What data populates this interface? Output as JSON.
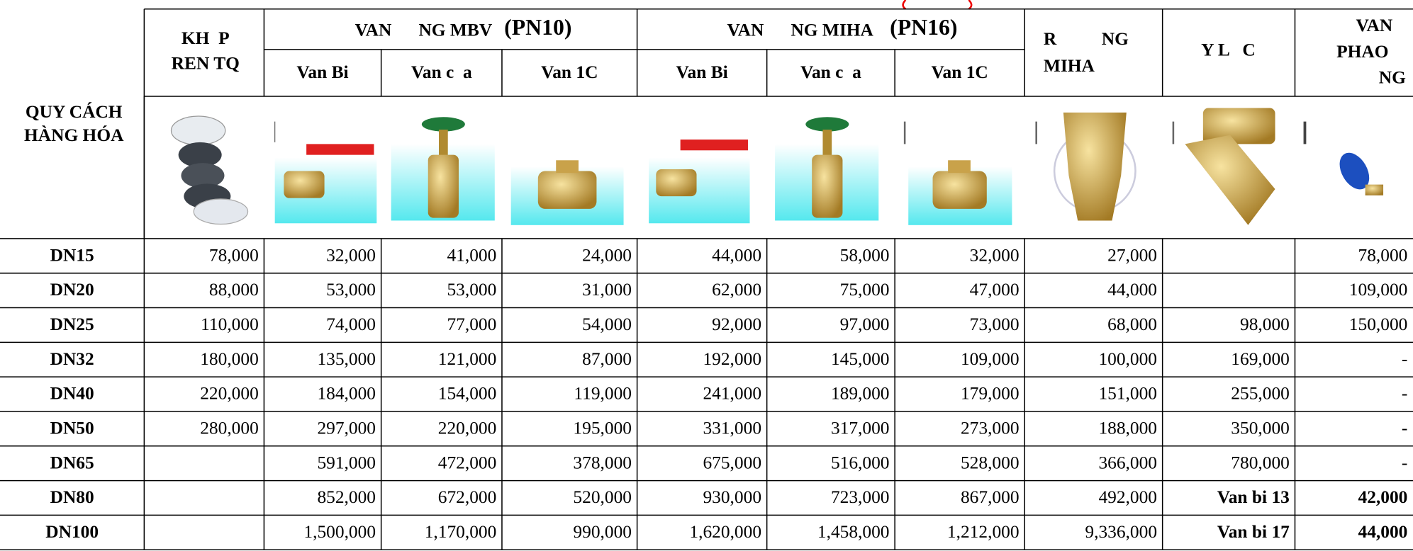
{
  "header": {
    "corner": [
      "QUY CÁCH",
      "HÀNG HÓA"
    ],
    "khop": [
      "KH  P",
      "REN TQ"
    ],
    "group1": {
      "title": "VAN      NG MBV",
      "pn": "(PN10)",
      "sub": [
        "Van Bi",
        "Van c  a",
        "Van 1C"
      ]
    },
    "group2": {
      "title": "VAN      NG MIHA",
      "pn": "(PN16)",
      "sub": [
        "Van Bi",
        "Van c  a",
        "Van 1C"
      ]
    },
    "r_miha": [
      "R          NG",
      "MIHA"
    ],
    "ylc": "Y L   C",
    "phao": [
      "VAN",
      "PHAO",
      "NG"
    ]
  },
  "table": {
    "rows": [
      [
        "DN15",
        "78,000",
        "32,000",
        "41,000",
        "24,000",
        "44,000",
        "58,000",
        "32,000",
        "27,000",
        null,
        "78,000"
      ],
      [
        "DN20",
        "88,000",
        "53,000",
        "53,000",
        "31,000",
        "62,000",
        "75,000",
        "47,000",
        "44,000",
        null,
        "109,000"
      ],
      [
        "DN25",
        "110,000",
        "74,000",
        "77,000",
        "54,000",
        "92,000",
        "97,000",
        "73,000",
        "68,000",
        "98,000",
        "150,000"
      ],
      [
        "DN32",
        "180,000",
        "135,000",
        "121,000",
        "87,000",
        "192,000",
        "145,000",
        "109,000",
        "100,000",
        "169,000",
        "-"
      ],
      [
        "DN40",
        "220,000",
        "184,000",
        "154,000",
        "119,000",
        "241,000",
        "189,000",
        "179,000",
        "151,000",
        "255,000",
        "-"
      ],
      [
        "DN50",
        "280,000",
        "297,000",
        "220,000",
        "195,000",
        "331,000",
        "317,000",
        "273,000",
        "188,000",
        "350,000",
        "-"
      ],
      [
        "DN65",
        null,
        "591,000",
        "472,000",
        "378,000",
        "675,000",
        "516,000",
        "528,000",
        "366,000",
        "780,000",
        "-"
      ],
      [
        "DN80",
        null,
        "852,000",
        "672,000",
        "520,000",
        "930,000",
        "723,000",
        "867,000",
        "492,000",
        "Van bi 13",
        "42,000"
      ],
      [
        "DN100",
        null,
        "1,500,000",
        "1,170,000",
        "990,000",
        "1,620,000",
        "1,458,000",
        "1,212,000",
        "9,336,000",
        "Van bi 17",
        "44,000"
      ]
    ]
  }
}
